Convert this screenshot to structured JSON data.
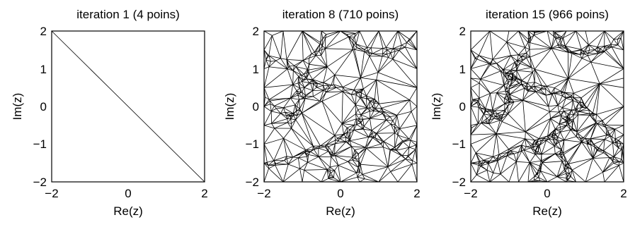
{
  "figure": {
    "panels": [
      {
        "title": "iteration 1 (4 poins)",
        "xlabel": "Re(z)",
        "ylabel": "Im(z)",
        "xlim": [
          -2,
          2
        ],
        "ylim": [
          -2,
          2
        ],
        "xticks": [
          "−2",
          "0",
          "2"
        ],
        "yticks": [
          "2",
          "1",
          "0",
          "−1",
          "−2"
        ],
        "mesh": "sparse"
      },
      {
        "title": "iteration 8 (710 poins)",
        "xlabel": "Re(z)",
        "ylabel": "Im(z)",
        "xlim": [
          -2,
          2
        ],
        "ylim": [
          -2,
          2
        ],
        "xticks": [
          "−2",
          "0",
          "2"
        ],
        "yticks": [
          "2",
          "1",
          "0",
          "−1",
          "−2"
        ],
        "mesh": "dense"
      },
      {
        "title": "iteration 15 (966 poins)",
        "xlabel": "Re(z)",
        "ylabel": "Im(z)",
        "xlim": [
          -2,
          2
        ],
        "ylim": [
          -2,
          2
        ],
        "xticks": [
          "−2",
          "0",
          "2"
        ],
        "yticks": [
          "2",
          "1",
          "0",
          "−1",
          "−2"
        ],
        "mesh": "denser"
      }
    ]
  }
}
